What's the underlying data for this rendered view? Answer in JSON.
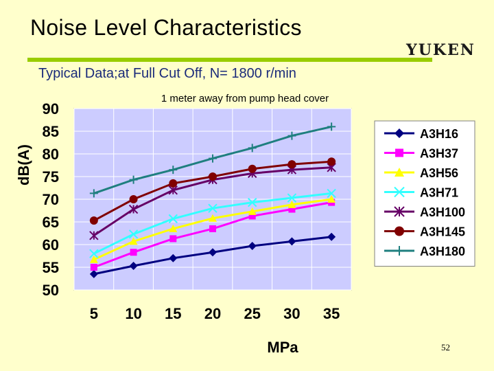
{
  "slide": {
    "title": "Noise Level Characteristics",
    "subtitle": "Typical Data;at Full Cut Off, N= 1800 r/min",
    "logo_text": "YUKEN",
    "slide_number": "52",
    "colors": {
      "background": "#ffffcc",
      "title_rule": "#99cc00",
      "subtitle_text": "#1a2a7a",
      "plot_area": "#ccccff"
    }
  },
  "chart_data": {
    "type": "line",
    "title": "1 meter away from pump head cover",
    "xlabel": "MPa",
    "ylabel": "dB(A)",
    "categories": [
      "5",
      "10",
      "15",
      "20",
      "25",
      "30",
      "35"
    ],
    "ylim": [
      50,
      90
    ],
    "yticks": [
      "50",
      "55",
      "60",
      "65",
      "70",
      "75",
      "80",
      "85",
      "90"
    ],
    "grid": true,
    "legend_position": "right",
    "series": [
      {
        "name": "A3H16",
        "color": "#000080",
        "marker": "diamond",
        "values": [
          53.5,
          55.3,
          57.0,
          58.3,
          59.7,
          60.7,
          61.7
        ]
      },
      {
        "name": "A3H37",
        "color": "#ff00ff",
        "marker": "square",
        "values": [
          55.0,
          58.3,
          61.3,
          63.5,
          66.3,
          67.8,
          69.3
        ]
      },
      {
        "name": "A3H56",
        "color": "#ffff00",
        "marker": "triangle",
        "values": [
          56.7,
          60.7,
          63.5,
          65.8,
          67.3,
          68.8,
          70.0
        ]
      },
      {
        "name": "A3H71",
        "color": "#33ffff",
        "marker": "x",
        "values": [
          58.0,
          62.3,
          65.7,
          68.0,
          69.3,
          70.3,
          71.3
        ]
      },
      {
        "name": "A3H100",
        "color": "#660066",
        "marker": "star",
        "values": [
          62.0,
          67.8,
          72.0,
          74.3,
          75.7,
          76.5,
          77.0
        ]
      },
      {
        "name": "A3H145",
        "color": "#800000",
        "marker": "circle",
        "values": [
          65.3,
          70.0,
          73.5,
          75.0,
          76.7,
          77.7,
          78.3
        ]
      },
      {
        "name": "A3H180",
        "color": "#1f7f7f",
        "marker": "plus",
        "values": [
          71.3,
          74.3,
          76.5,
          79.0,
          81.3,
          84.0,
          86.0
        ]
      }
    ]
  }
}
